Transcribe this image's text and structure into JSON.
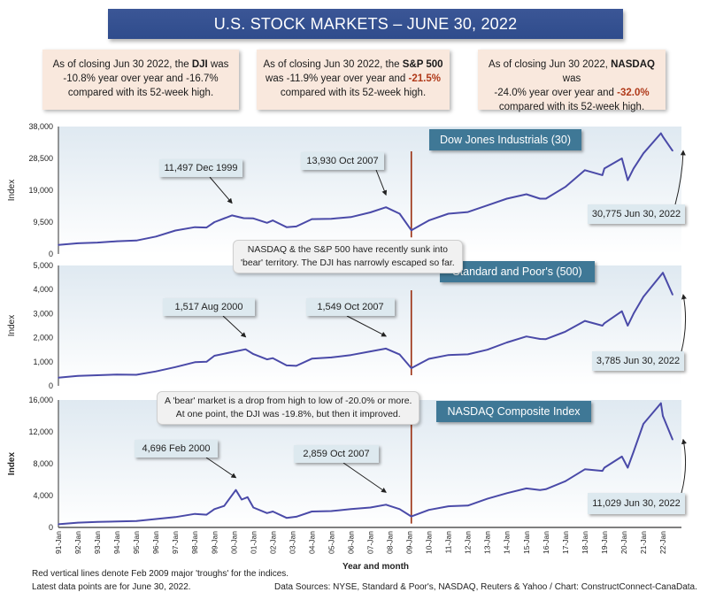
{
  "header": {
    "title": "U.S. STOCK MARKETS – JUNE 30, 2022"
  },
  "summaries": [
    {
      "prefix": "As of closing Jun 30 2022, the ",
      "index": "DJI",
      "mid": " was",
      "line2a": "-10.8% year over year and ",
      "drop": "-16.7%",
      "drop_highlight": false,
      "line3": "compared with its 52-week high."
    },
    {
      "prefix": "As of closing Jun 30 2022, the ",
      "index": "S&P 500",
      "mid": "",
      "line2a": "was -11.9% year over year and ",
      "drop": "-21.5%",
      "drop_highlight": true,
      "line3": "compared with its 52-week high."
    },
    {
      "prefix": "As of closing Jun 30 2022, ",
      "index": "NASDAQ",
      "mid": " was",
      "line2a": "-24.0% year over year and ",
      "drop": "-32.0%",
      "drop_highlight": true,
      "line3": "compared with its 52-week high."
    }
  ],
  "notes": {
    "bear_territory": [
      "NASDAQ & the S&P 500 have recently sunk into",
      "'bear' territory. The DJI has narrowly escaped so far."
    ],
    "bear_definition": [
      "A 'bear' market is a drop from high to low of -20.0% or more.",
      "At one point, the DJI was -19.8%, but then it improved."
    ]
  },
  "footer": {
    "line1": "Red vertical lines denote Feb 2009 major 'troughs' for the indices.",
    "line2": "Latest data points are for June 30, 2022.",
    "sources": "Data Sources:  NYSE, Standard & Poor's, NASDAQ, Reuters & Yahoo / Chart: ConstructConnect-CanaData."
  },
  "colors": {
    "line": "#4a4aa8",
    "trough": "#9b2f10",
    "title_bg": "#34508f",
    "panel_title_bg": "#3f7896",
    "summary_bg": "#f9e8dd",
    "callout_bg": "#dde9ef",
    "neg_highlight": "#b03a1a"
  },
  "chart_data": [
    {
      "type": "line",
      "title": "Dow Jones Industrials (30)",
      "ylabel": "Index",
      "ylim": [
        0,
        38000
      ],
      "yticks": [
        "0",
        "9,500",
        "19,000",
        "28,500",
        "38,000"
      ],
      "ytick_values": [
        0,
        9500,
        19000,
        28500,
        38000
      ],
      "trough_year": 2009.1,
      "x": [
        1991,
        1992,
        1993,
        1994,
        1995,
        1996,
        1997,
        1998,
        1998.6,
        1999,
        1999.9,
        2000.5,
        2001,
        2001.7,
        2002,
        2002.7,
        2003.2,
        2004,
        2005,
        2006,
        2007,
        2007.8,
        2008.5,
        2009.1,
        2010,
        2011,
        2012,
        2013,
        2014,
        2015,
        2015.7,
        2016,
        2017,
        2018,
        2018.9,
        2019,
        2019.9,
        2020.2,
        2020.5,
        2021,
        2021.9,
        2022,
        2022.5
      ],
      "values": [
        2700,
        3200,
        3400,
        3800,
        4000,
        5200,
        7000,
        8000,
        7900,
        9500,
        11497,
        10700,
        10600,
        9300,
        10000,
        8000,
        8200,
        10400,
        10500,
        11000,
        12400,
        13930,
        12000,
        7060,
        10000,
        12000,
        12500,
        14500,
        16500,
        17800,
        16500,
        16500,
        20000,
        25000,
        23500,
        25500,
        28500,
        22000,
        25500,
        30000,
        36000,
        35000,
        30775
      ],
      "annotations": [
        {
          "label": "11,497 Dec 1999",
          "x": 1999.9,
          "value": 11497
        },
        {
          "label": "13,930 Oct 2007",
          "x": 2007.8,
          "value": 13930
        },
        {
          "label": "30,775 Jun 30, 2022",
          "x": 2022.5,
          "value": 30775
        }
      ]
    },
    {
      "type": "line",
      "title": "Standard and Poor's (500)",
      "ylabel": "Index",
      "ylim": [
        0,
        5000
      ],
      "yticks": [
        "0",
        "1,000",
        "2,000",
        "3,000",
        "4,000",
        "5,000"
      ],
      "ytick_values": [
        0,
        1000,
        2000,
        3000,
        4000,
        5000
      ],
      "trough_year": 2009.1,
      "x": [
        1991,
        1992,
        1993,
        1994,
        1995,
        1996,
        1997,
        1998,
        1998.6,
        1999,
        2000.6,
        2001,
        2001.7,
        2002,
        2002.7,
        2003.2,
        2004,
        2005,
        2006,
        2007,
        2007.8,
        2008.5,
        2009.1,
        2010,
        2011,
        2012,
        2013,
        2014,
        2015,
        2015.7,
        2016,
        2017,
        2018,
        2018.9,
        2019,
        2019.9,
        2020.2,
        2020.5,
        2021,
        2022,
        2022.5
      ],
      "values": [
        340,
        410,
        440,
        470,
        460,
        600,
        780,
        980,
        1000,
        1250,
        1517,
        1320,
        1100,
        1150,
        850,
        830,
        1130,
        1180,
        1280,
        1430,
        1549,
        1300,
        735,
        1120,
        1280,
        1310,
        1500,
        1800,
        2050,
        1950,
        1940,
        2250,
        2700,
        2500,
        2600,
        3100,
        2500,
        3000,
        3700,
        4700,
        3785
      ],
      "annotations": [
        {
          "label": "1,517 Aug 2000",
          "x": 2000.6,
          "value": 1517
        },
        {
          "label": "1,549 Oct 2007",
          "x": 2007.8,
          "value": 1549
        },
        {
          "label": "3,785 Jun 30, 2022",
          "x": 2022.5,
          "value": 3785
        }
      ]
    },
    {
      "type": "line",
      "title": "NASDAQ Composite Index",
      "ylabel": "Index",
      "ylim": [
        0,
        16000
      ],
      "yticks": [
        "0",
        "4,000",
        "8,000",
        "12,000",
        "16,000"
      ],
      "ytick_values": [
        0,
        4000,
        8000,
        12000,
        16000
      ],
      "trough_year": 2009.1,
      "x": [
        1991,
        1992,
        1993,
        1994,
        1995,
        1996,
        1997,
        1998,
        1998.6,
        1999,
        1999.5,
        2000.1,
        2000.4,
        2000.7,
        2001,
        2001.7,
        2002,
        2002.7,
        2003.2,
        2004,
        2005,
        2006,
        2007,
        2007.8,
        2008.5,
        2009.1,
        2010,
        2011,
        2012,
        2013,
        2014,
        2015,
        2015.7,
        2016,
        2017,
        2018,
        2018.9,
        2019,
        2019.9,
        2020.2,
        2020.5,
        2021,
        2021.9,
        2022,
        2022.5
      ],
      "values": [
        400,
        600,
        700,
        750,
        800,
        1050,
        1300,
        1700,
        1600,
        2300,
        2700,
        4696,
        3500,
        3800,
        2500,
        1800,
        2000,
        1200,
        1350,
        2000,
        2050,
        2300,
        2500,
        2859,
        2300,
        1380,
        2200,
        2650,
        2750,
        3600,
        4300,
        4900,
        4700,
        4800,
        5800,
        7300,
        7100,
        7500,
        8900,
        7500,
        9500,
        13000,
        15600,
        14000,
        11029
      ],
      "annotations": [
        {
          "label": "4,696 Feb 2000",
          "x": 2000.1,
          "value": 4696
        },
        {
          "label": "2,859 Oct 2007",
          "x": 2007.8,
          "value": 2859
        },
        {
          "label": "11,029 Jun 30, 2022",
          "x": 2022.5,
          "value": 11029
        }
      ]
    }
  ],
  "xaxis": {
    "title": "Year and month",
    "range": [
      1991,
      2022.5
    ],
    "ticks": [
      "91-Jan",
      "92-Jan",
      "93-Jan",
      "94-Jan",
      "95-Jan",
      "96-Jan",
      "97-Jan",
      "98-Jan",
      "99-Jan",
      "00-Jan",
      "01-Jan",
      "02-Jan",
      "03-Jan",
      "04-Jan",
      "05-Jan",
      "06-Jan",
      "07-Jan",
      "08-Jan",
      "09-Jan",
      "10-Jan",
      "11-Jan",
      "12-Jan",
      "13-Jan",
      "14-Jan",
      "15-Jan",
      "16-Jan",
      "17-Jan",
      "18-Jan",
      "19-Jan",
      "20-Jan",
      "21-Jan",
      "22-Jan"
    ]
  }
}
